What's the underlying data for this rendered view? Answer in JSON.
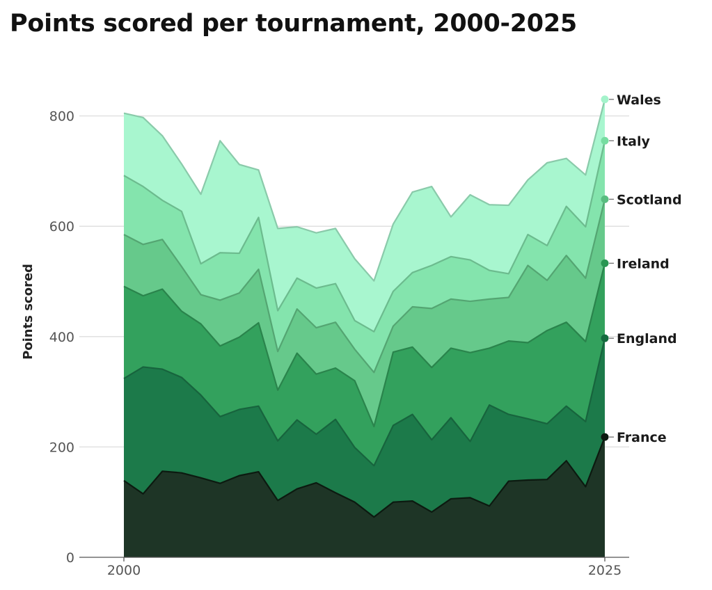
{
  "chart_data": {
    "type": "area",
    "stacked": true,
    "title": "Points scored per tournament, 2000-2025",
    "ylabel": "Points scored",
    "xlabel": "",
    "ylim": [
      0,
      830
    ],
    "yticks": [
      0,
      200,
      400,
      600,
      800
    ],
    "xticks": [
      2000,
      2025
    ],
    "grid": true,
    "legend_placement": "right end labels",
    "x": [
      2000,
      2001,
      2002,
      2003,
      2004,
      2005,
      2006,
      2007,
      2008,
      2009,
      2010,
      2011,
      2012,
      2013,
      2014,
      2015,
      2016,
      2017,
      2018,
      2019,
      2020,
      2021,
      2022,
      2023,
      2024,
      2025
    ],
    "series": [
      {
        "name": "France",
        "color": "#1e3526",
        "values": [
          139,
          115,
          156,
          153,
          144,
          134,
          148,
          155,
          103,
          124,
          135,
          117,
          100,
          73,
          100,
          102,
          82,
          106,
          108,
          93,
          138,
          140,
          141,
          175,
          128,
          218
        ]
      },
      {
        "name": "England",
        "color": "#1c7a4a",
        "values": [
          185,
          230,
          185,
          173,
          150,
          121,
          120,
          119,
          108,
          125,
          88,
          133,
          99,
          93,
          139,
          157,
          131,
          147,
          102,
          183,
          121,
          111,
          101,
          99,
          118,
          179
        ]
      },
      {
        "name": "Ireland",
        "color": "#33a15d",
        "values": [
          167,
          129,
          145,
          120,
          129,
          128,
          131,
          151,
          92,
          121,
          109,
          93,
          121,
          71,
          133,
          122,
          131,
          126,
          161,
          103,
          133,
          138,
          169,
          152,
          145,
          136
        ]
      },
      {
        "name": "Scotland",
        "color": "#66c98b",
        "values": [
          94,
          93,
          90,
          81,
          53,
          83,
          80,
          97,
          70,
          80,
          84,
          83,
          57,
          98,
          47,
          73,
          107,
          89,
          93,
          89,
          79,
          140,
          91,
          121,
          115,
          116
        ]
      },
      {
        "name": "Italy",
        "color": "#84e4ad",
        "values": [
          107,
          105,
          71,
          100,
          56,
          86,
          72,
          94,
          74,
          56,
          72,
          70,
          52,
          74,
          63,
          62,
          78,
          77,
          75,
          52,
          43,
          56,
          63,
          89,
          93,
          106
        ]
      },
      {
        "name": "Wales",
        "color": "#a8f6cf",
        "values": [
          113,
          125,
          117,
          86,
          126,
          203,
          161,
          86,
          149,
          93,
          100,
          100,
          112,
          92,
          122,
          146,
          143,
          72,
          118,
          119,
          124,
          99,
          150,
          87,
          94,
          75
        ]
      }
    ]
  }
}
